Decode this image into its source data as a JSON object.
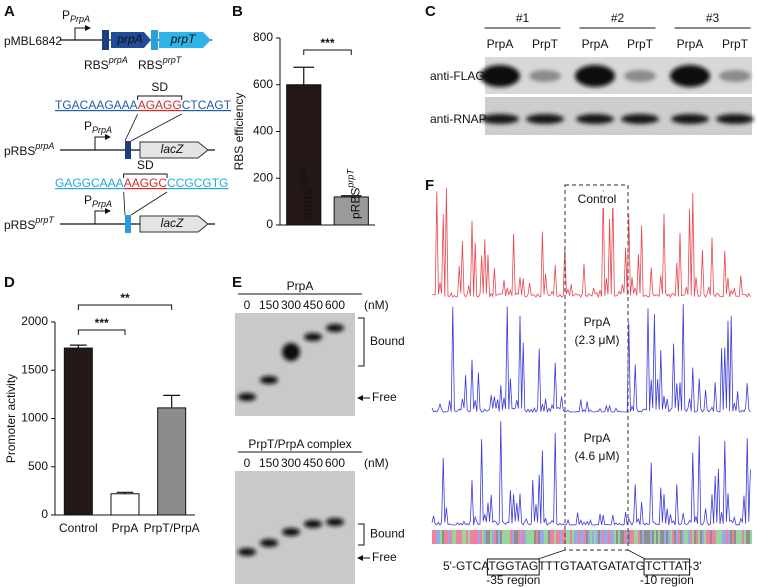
{
  "panels": {
    "A": {
      "label": "A",
      "plasmid": "pMBL6842",
      "promoter": "P",
      "promoter_sub": "PrpA",
      "rbs": "RBS",
      "rbs_sups": [
        "prpA",
        "prpT"
      ],
      "genes": [
        "prpA",
        "prpT"
      ],
      "constructs": [
        {
          "name": "pRBS",
          "name_sup": "prpA",
          "seq_before": "TGACAAGAAA",
          "sd_seq": "AGAGG",
          "seq_after": "CTCAGT",
          "sd": "SD",
          "promoter": "P",
          "promoter_sub": "PrpA",
          "reporter": "lacZ"
        },
        {
          "name": "pRBS",
          "name_sup": "prpT",
          "seq_before": "GAGGCAAA",
          "sd_seq": "AAGGC",
          "seq_after": "CCGCGTG",
          "sd": "SD",
          "promoter": "P",
          "promoter_sub": "PrpA",
          "reporter": "lacZ"
        }
      ]
    },
    "C": {
      "label": "C",
      "groups": [
        "#1",
        "#2",
        "#3"
      ],
      "lanes": [
        "PrpA",
        "PrpT",
        "PrpA",
        "PrpT",
        "PrpA",
        "PrpT"
      ],
      "blots": [
        "anti-FLAG",
        "anti-RNAP"
      ]
    },
    "E": {
      "label": "E",
      "gels": [
        {
          "title": "PrpA",
          "lanes": [
            "0",
            "150",
            "300",
            "450",
            "600"
          ],
          "unit": "(nM)",
          "bound": "Bound",
          "free": "Free"
        },
        {
          "title": "PrpT/PrpA complex",
          "lanes": [
            "0",
            "150",
            "300",
            "450",
            "600"
          ],
          "unit": "(nM)",
          "bound": "Bound",
          "free": "Free"
        }
      ]
    },
    "F": {
      "label": "F",
      "conditions": [
        [
          "Control"
        ],
        [
          "PrpA",
          "(2.3 μM)"
        ],
        [
          "PrpA",
          "(4.6 μM)"
        ]
      ],
      "sequence": [
        "5'-GTCA",
        "TGGTAG",
        "TTTGTAATGATATG",
        "TCTTAT",
        "-3'"
      ],
      "regions": [
        "-35 region",
        "-10 region"
      ]
    }
  },
  "chart_data": [
    {
      "type": "bar",
      "label": "B",
      "ylabel": "RBS efficiency",
      "categories": [
        "pRBS",
        "pRBS"
      ],
      "category_superscripts": [
        "prpA",
        "prpT"
      ],
      "values": [
        600,
        120
      ],
      "errors": [
        75,
        5
      ],
      "colors": [
        "#231815",
        "#9a9a9a"
      ],
      "ylim": [
        0,
        800
      ],
      "yticks": [
        0,
        200,
        400,
        600,
        800
      ],
      "significance": [
        "***"
      ]
    },
    {
      "type": "bar",
      "label": "D",
      "ylabel": "Promoter activity",
      "categories": [
        "Control",
        "PrpA",
        "PrpT/PrpA"
      ],
      "values": [
        1730,
        220,
        1110
      ],
      "errors": [
        30,
        15,
        130
      ],
      "colors": [
        "#231815",
        "#ffffff",
        "#8c8c8c"
      ],
      "ylim": [
        0,
        2000
      ],
      "yticks": [
        0,
        500,
        1000,
        1500,
        2000
      ],
      "significance": [
        "***",
        "**"
      ]
    }
  ]
}
